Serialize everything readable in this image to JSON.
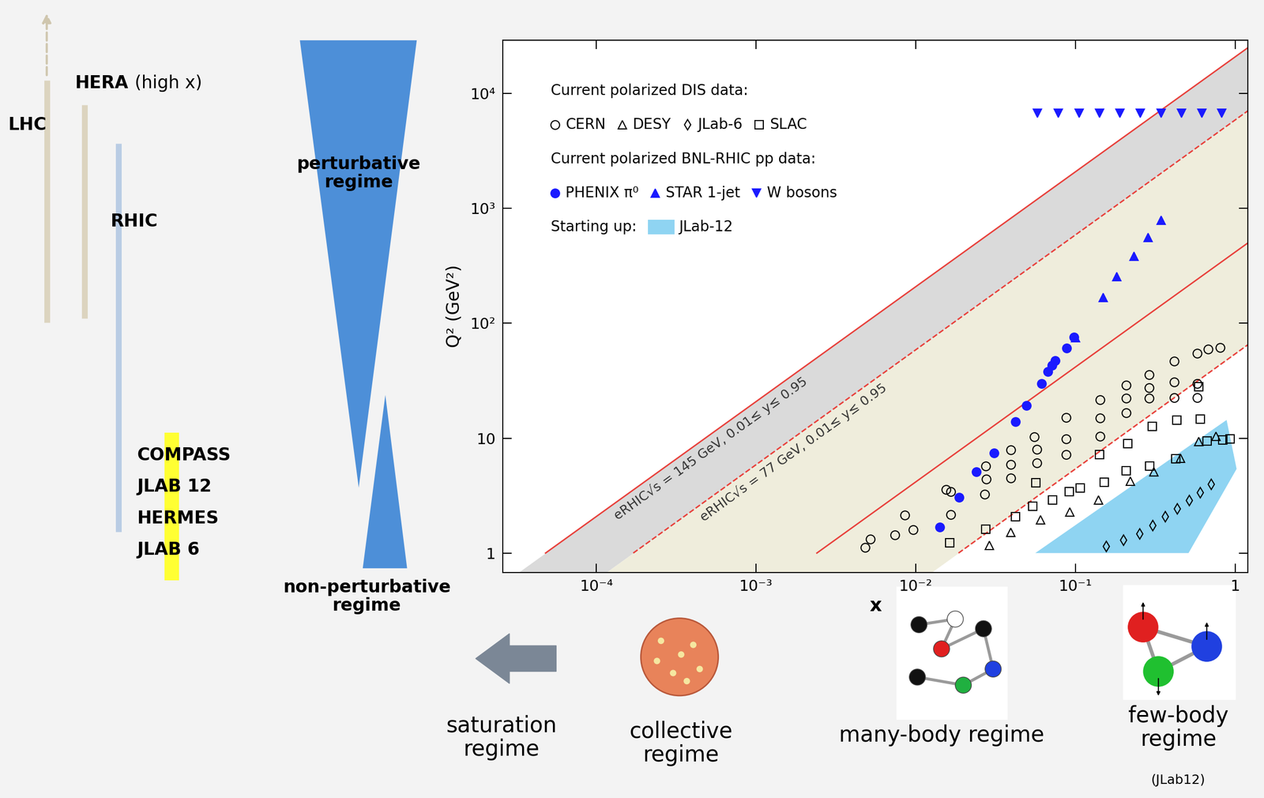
{
  "chart_data": {
    "type": "scatter",
    "log": true,
    "xlabel": "x",
    "ylabel": "Q² (GeV²)",
    "xlim": [
      2.6e-05,
      1.2
    ],
    "ylim": [
      0.68,
      29000
    ],
    "xticks": [
      {
        "value": 0.0001,
        "label": "10⁻⁴"
      },
      {
        "value": 0.001,
        "label": "10⁻³"
      },
      {
        "value": 0.01,
        "label": "10⁻²"
      },
      {
        "value": 0.1,
        "label": "10⁻¹"
      },
      1
    ],
    "yticks": [
      1,
      10,
      {
        "value": 100,
        "label": "10²"
      },
      {
        "value": 1000,
        "label": "10³"
      },
      {
        "value": 10000,
        "label": "10⁴"
      }
    ],
    "legend": "upper left",
    "legend_groups": [
      {
        "title": "Current polarized DIS data:",
        "members": [
          "CERN",
          "DESY",
          "JLab-6",
          "SLAC"
        ]
      },
      {
        "title": "Current polarized BNL-RHIC pp data:",
        "members": [
          "PHENIX π⁰",
          "STAR 1-jet",
          "W bosons"
        ]
      },
      {
        "title": "Starting up:",
        "members": [
          "JLab-12"
        ]
      }
    ],
    "series": [
      {
        "name": "JLab-12",
        "type": "area",
        "color": "#8fd4f2",
        "x": [
          0.056,
          0.883,
          1.02,
          0.51
        ],
        "values": [
          1,
          14.4,
          5.4,
          1
        ]
      },
      {
        "name": "CERN",
        "marker": "open circle",
        "color": "#000000",
        "x": [
          0.0048,
          0.0052,
          0.0074,
          0.0085,
          0.0096,
          0.0154,
          0.0165,
          0.0165,
          0.0273,
          0.0276,
          0.027,
          0.0393,
          0.0393,
          0.0393,
          0.0553,
          0.0573,
          0.0573,
          0.087,
          0.087,
          0.087,
          0.142,
          0.142,
          0.142,
          0.207,
          0.207,
          0.207,
          0.289,
          0.289,
          0.289,
          0.416,
          0.416,
          0.416,
          0.578,
          0.578,
          0.578,
          0.679,
          0.805
        ],
        "values": [
          1.12,
          1.32,
          1.43,
          2.14,
          1.6,
          3.58,
          3.41,
          2.17,
          5.7,
          4.4,
          3.25,
          7.9,
          5.9,
          4.5,
          10.3,
          8.0,
          6.1,
          15.1,
          9.8,
          7.2,
          21.5,
          14.9,
          10.4,
          28.8,
          22.2,
          16.6,
          35.6,
          27.5,
          22.2,
          46.8,
          30.7,
          22.6,
          55,
          29.8,
          22.6,
          59.6,
          61.5
        ]
      },
      {
        "name": "DESY",
        "marker": "open triangle",
        "color": "#000000",
        "x": [
          0.0288,
          0.0393,
          0.0605,
          0.0923,
          0.139,
          0.22,
          0.309,
          0.455,
          0.592,
          0.76
        ],
        "values": [
          1.16,
          1.52,
          1.94,
          2.28,
          2.9,
          4.2,
          5.1,
          6.7,
          9.3,
          10.4
        ]
      },
      {
        "name": "JLab-6",
        "marker": "open diamond",
        "color": "#000000",
        "x": [
          0.156,
          0.2,
          0.252,
          0.305,
          0.366,
          0.435,
          0.516,
          0.606,
          0.71
        ],
        "values": [
          1.14,
          1.29,
          1.47,
          1.73,
          2.07,
          2.43,
          2.86,
          3.36,
          3.95
        ]
      },
      {
        "name": "SLAC",
        "marker": "open square",
        "color": "#000000",
        "x": [
          0.0163,
          0.0273,
          0.0421,
          0.054,
          0.0565,
          0.0718,
          0.0913,
          0.107,
          0.141,
          0.151,
          0.207,
          0.212,
          0.292,
          0.302,
          0.425,
          0.43,
          0.592,
          0.606,
          0.668,
          0.834,
          0.93
        ],
        "values": [
          1.23,
          1.62,
          2.07,
          2.55,
          4.08,
          2.9,
          3.41,
          3.7,
          7.2,
          4.15,
          5.2,
          9.0,
          5.7,
          12.6,
          6.6,
          14.4,
          27.9,
          14.6,
          9.4,
          9.6,
          9.8
        ]
      },
      {
        "name": "PHENIX π⁰",
        "marker": "circle",
        "color": "#1a1aff",
        "x": [
          0.0141,
          0.0187,
          0.024,
          0.0309,
          0.0421,
          0.0493,
          0.0612,
          0.0671,
          0.071,
          0.0743,
          0.0883,
          0.0977
        ],
        "values": [
          1.68,
          3.05,
          5.1,
          7.4,
          13.9,
          19.2,
          29.8,
          37.9,
          43.2,
          47.5,
          60.6,
          76
        ]
      },
      {
        "name": "STAR 1-jet",
        "marker": "triangle",
        "color": "#1a1aff",
        "x": [
          0.1,
          0.149,
          0.181,
          0.232,
          0.285,
          0.343
        ],
        "values": [
          75,
          168,
          255,
          382,
          555,
          791
        ]
      },
      {
        "name": "W bosons",
        "marker": "triangle_down",
        "color": "#1a1aff",
        "x": [
          0.0579,
          0.0778,
          0.105,
          0.141,
          0.189,
          0.255,
          0.343,
          0.461,
          0.62,
          0.824
        ],
        "values": [
          6700,
          6700,
          6700,
          6700,
          6700,
          6700,
          6700,
          6700,
          6700,
          6700
        ]
      }
    ],
    "erhic": [
      {
        "label": "eRHIC√s = 145 GeV, 0.01≤ y≤ 0.95",
        "color": "#e8413c",
        "band_color": "#dadada",
        "line_style": "solid",
        "upper": {
          "x": [
            4.8e-05,
            1.2
          ],
          "y": [
            1,
            25000
          ]
        },
        "lower": {
          "x": [
            0.0024,
            1.2
          ],
          "y": [
            1,
            500
          ]
        }
      },
      {
        "label": "eRHIC√s = 77 GeV, 0.01≤ y≤ 0.95",
        "color": "#e8413c",
        "band_color": "#efeddc",
        "line_style": "dashed",
        "upper": {
          "x": [
            0.00017,
            1.2
          ],
          "y": [
            1,
            7060
          ]
        },
        "lower": {
          "x": [
            0.0185,
            1.2
          ],
          "y": [
            1,
            65
          ]
        }
      }
    ]
  },
  "slide": {
    "facilities": {
      "lhc": "LHC",
      "hera": "HERA",
      "hera_note": "(high x)",
      "rhic": "RHIC",
      "low_energy": [
        "COMPASS",
        "JLAB 12",
        "HERMES",
        "JLAB 6"
      ]
    },
    "regimes": {
      "perturbative": [
        "perturbative",
        "regime"
      ],
      "non_perturbative": [
        "non-perturbative",
        "regime"
      ]
    },
    "bottom": {
      "saturation": [
        "saturation",
        "regime"
      ],
      "collective": [
        "collective",
        "regime"
      ],
      "many_body": [
        "many-body regime"
      ],
      "few_body": [
        "few-body",
        "regime"
      ],
      "few_body_note": "(JLab12)"
    }
  }
}
